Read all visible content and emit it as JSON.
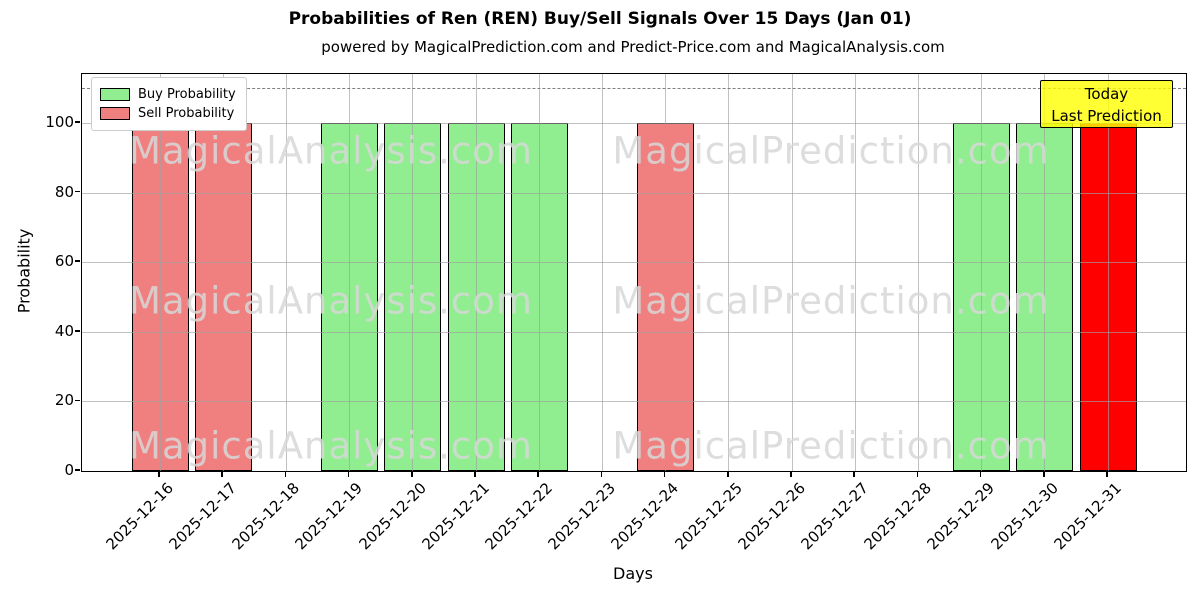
{
  "chart_data": {
    "type": "bar",
    "title": "Probabilities of Ren (REN) Buy/Sell Signals Over 15 Days (Jan 01)",
    "subtitle": "powered by MagicalPrediction.com and Predict-Price.com and MagicalAnalysis.com",
    "xlabel": "Days",
    "ylabel": "Probability",
    "categories": [
      "2025-12-16",
      "2025-12-17",
      "2025-12-18",
      "2025-12-19",
      "2025-12-20",
      "2025-12-21",
      "2025-12-22",
      "2025-12-23",
      "2025-12-24",
      "2025-12-25",
      "2025-12-26",
      "2025-12-27",
      "2025-12-28",
      "2025-12-29",
      "2025-12-30",
      "2025-12-31"
    ],
    "series": [
      {
        "name": "Buy Probability",
        "color": "#90ee90",
        "values": [
          0,
          0,
          0,
          100,
          100,
          100,
          100,
          0,
          0,
          0,
          0,
          0,
          0,
          100,
          100,
          0
        ]
      },
      {
        "name": "Sell Probability",
        "color": "#f08080",
        "values": [
          100,
          100,
          0,
          0,
          0,
          0,
          0,
          0,
          100,
          0,
          0,
          0,
          0,
          0,
          0,
          0
        ]
      },
      {
        "name": "Today Last Prediction (Sell)",
        "color": "#ff0000",
        "values": [
          0,
          0,
          0,
          0,
          0,
          0,
          0,
          0,
          0,
          0,
          0,
          0,
          0,
          0,
          0,
          100
        ]
      }
    ],
    "bar_edge_color": "#000000",
    "ylim": [
      0,
      114
    ],
    "yticks": [
      0,
      20,
      40,
      60,
      80,
      100
    ],
    "grid": true,
    "legend_position": "upper left",
    "dashed_line_y": 110
  },
  "legend": {
    "items": [
      {
        "label": "Buy Probability",
        "color": "#90ee90"
      },
      {
        "label": "Sell Probability",
        "color": "#f08080"
      }
    ]
  },
  "annotation": {
    "line1": "Today",
    "line2": "Last Prediction",
    "background": "#ffff00"
  },
  "watermarks": {
    "left_text": "MagicalAnalysis.com",
    "right_text": "MagicalPrediction.com"
  }
}
